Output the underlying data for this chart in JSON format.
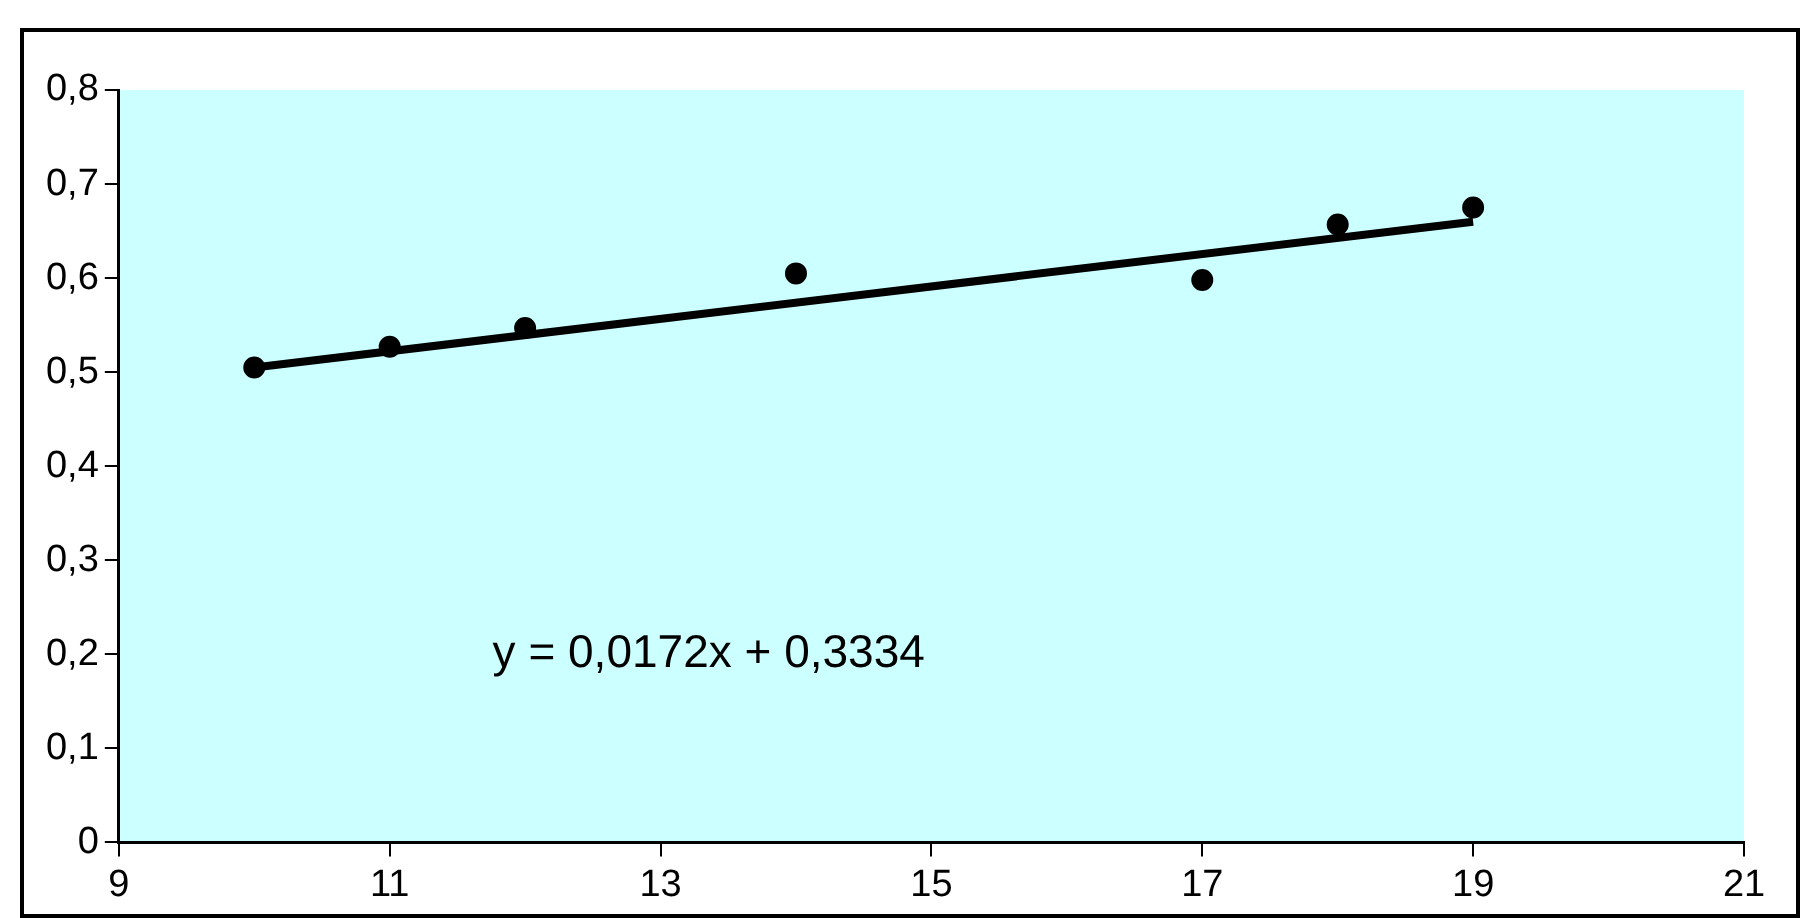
{
  "chart_data": {
    "type": "scatter",
    "x": [
      10,
      11,
      12,
      14,
      17,
      18,
      19
    ],
    "series": [
      {
        "type": "scatter",
        "color": "#000000",
        "marker": "circle",
        "values": [
          0.505,
          0.527,
          0.547,
          0.605,
          0.598,
          0.657,
          0.675
        ]
      },
      {
        "type": "line",
        "color": "#000000",
        "marker": "none",
        "x": [
          10,
          19
        ],
        "values": [
          0.505,
          0.66
        ]
      }
    ],
    "xlim": [
      9,
      21
    ],
    "xticks": [
      9,
      11,
      13,
      15,
      17,
      19,
      21
    ],
    "ylim": [
      0,
      0.8
    ],
    "yticks": [
      0,
      {
        "value": 0.1,
        "label": "0,1"
      },
      {
        "value": 0.2,
        "label": "0,2"
      },
      {
        "value": 0.3,
        "label": "0,3"
      },
      {
        "value": 0.4,
        "label": "0,4"
      },
      {
        "value": 0.5,
        "label": "0,5"
      },
      {
        "value": 0.6,
        "label": "0,6"
      },
      {
        "value": 0.7,
        "label": "0,7"
      },
      {
        "value": 0.8,
        "label": "0,8"
      }
    ],
    "grid": false,
    "legend": false,
    "annotations": [
      "y = 0,0172x + 0,3334"
    ]
  }
}
